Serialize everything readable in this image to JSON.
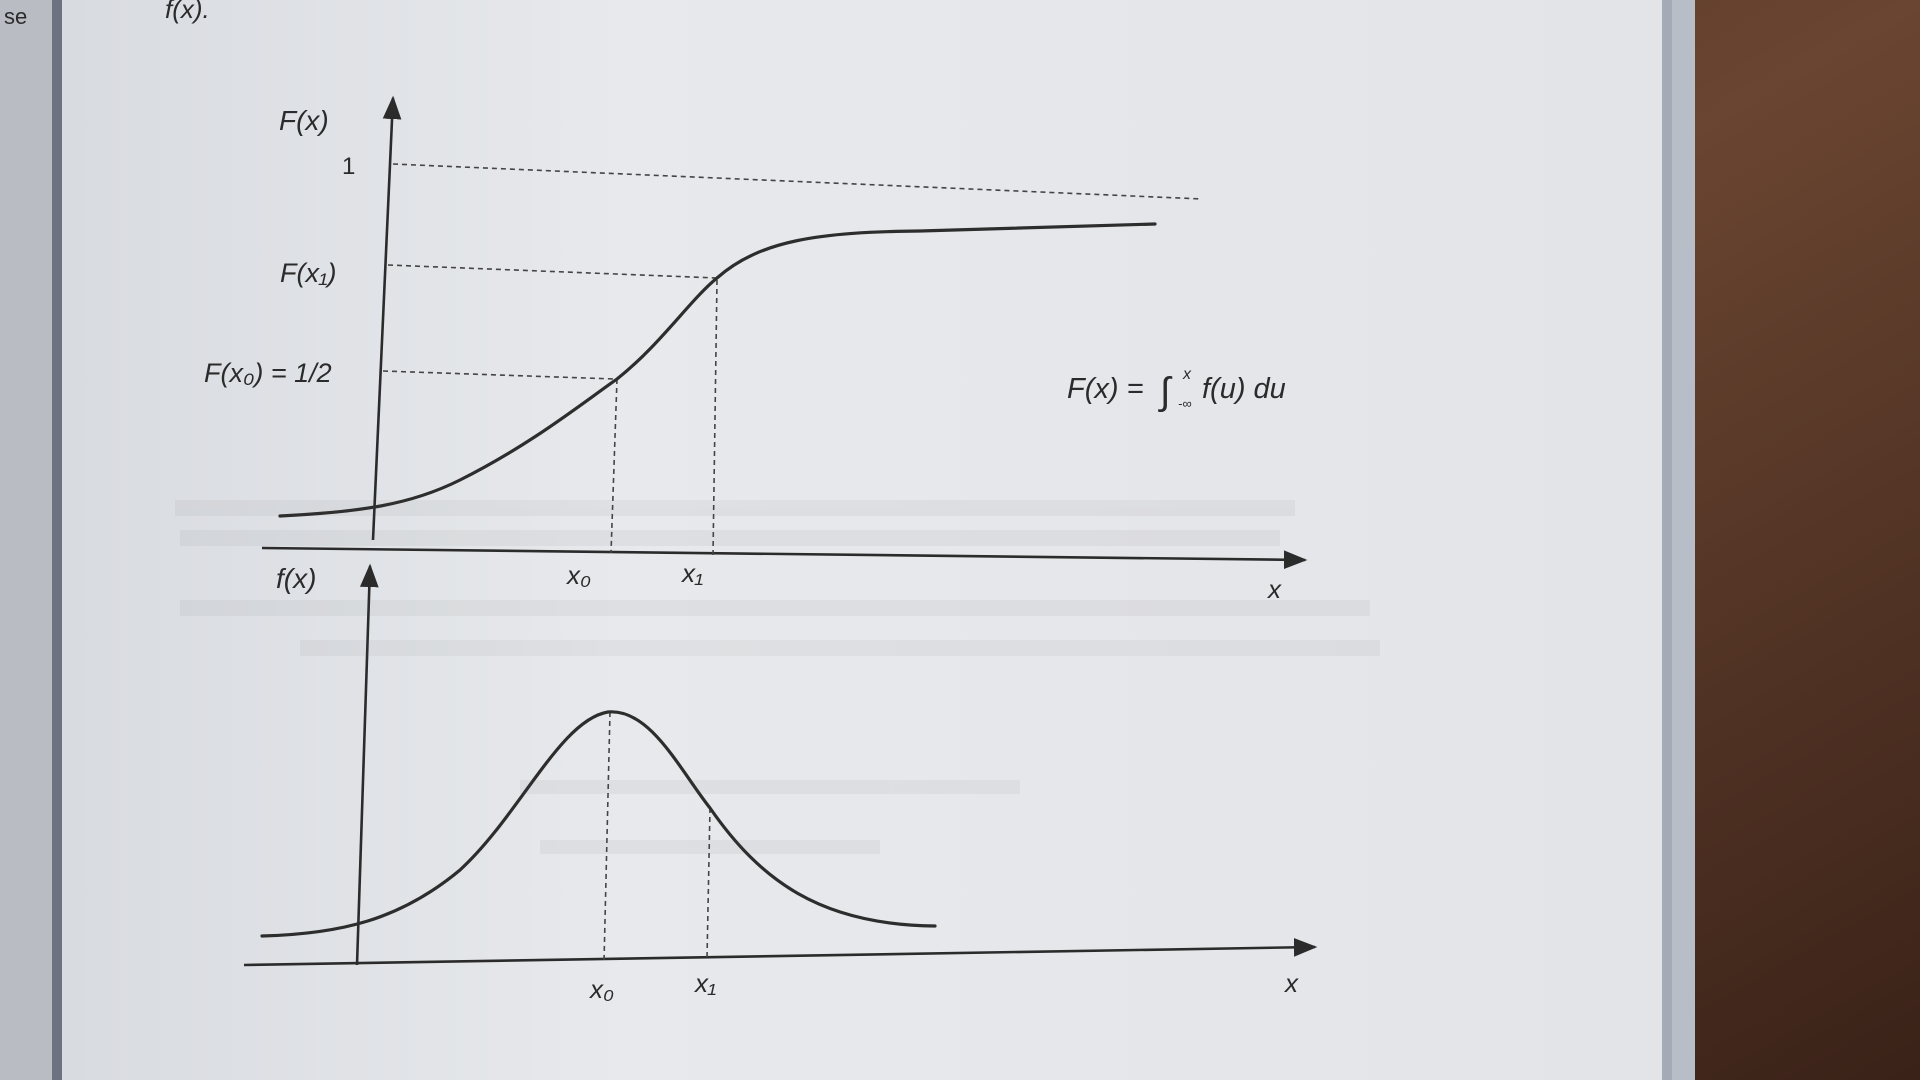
{
  "header_fragment": "f(x).",
  "margin_fragment": "se",
  "cdf_panel": {
    "y_axis_label": "F(x)",
    "tick_one": "1",
    "tick_fx1": "F(x₁)",
    "tick_fx0": "F(x₀) = 1/2",
    "x_tick_x0": "x₀",
    "x_tick_x1": "x₁",
    "x_axis_label": "x",
    "equation": "F(x) = ∫ f(u) du",
    "equation_parts": {
      "lhs": "F(x) = ",
      "integral": "∫",
      "upper_limit": "x",
      "lower_limit": "-∞",
      "integrand": "f(u) du"
    }
  },
  "pdf_panel": {
    "y_axis_label": "f(x)",
    "x_tick_x0": "x₀",
    "x_tick_x1": "x₁",
    "x_axis_label": "x"
  },
  "colors": {
    "paper": "#e4e6ea",
    "ink": "#2b2b2b",
    "wood": "#5a3a2a",
    "page_edge": "#9aa2b0"
  }
}
